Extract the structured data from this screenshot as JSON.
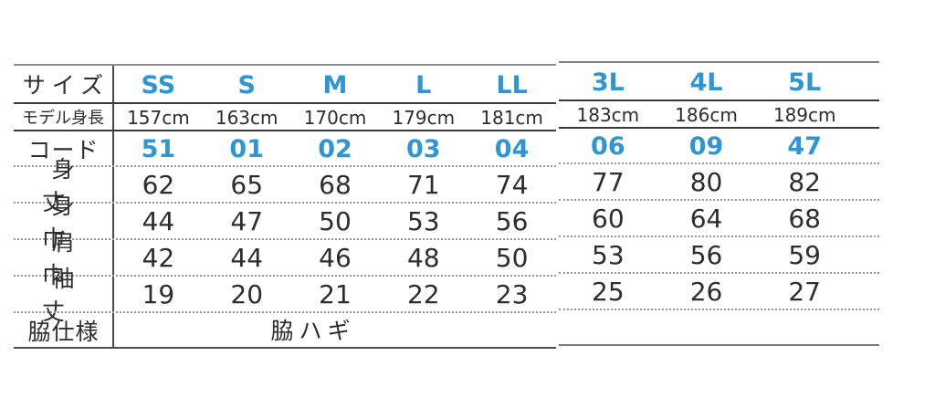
{
  "colors": {
    "accent_blue": "#2e96d5",
    "text_dark": "#2d2d2d",
    "rule_dark": "#383838",
    "rule_gray": "#8e8e8e",
    "rule_dotted": "#949494"
  },
  "chart_data": {
    "type": "table",
    "description": "Apparel size specification chart, two column groups (SS-LL and 3L-5L), all measurements in cm",
    "row_labels": [
      "サイズ",
      "モデル身長",
      "コード",
      "身丈",
      "身巾",
      "肩巾",
      "袖丈",
      "脇仕様"
    ],
    "columns": [
      "SS",
      "S",
      "M",
      "L",
      "LL",
      "3L",
      "4L",
      "5L"
    ],
    "left_section": {
      "rows": [
        [
          "SS",
          "S",
          "M",
          "L",
          "LL"
        ],
        [
          "157cm",
          "163cm",
          "170cm",
          "179cm",
          "181cm"
        ],
        [
          "51",
          "01",
          "02",
          "03",
          "04"
        ],
        [
          "62",
          "65",
          "68",
          "71",
          "74"
        ],
        [
          "44",
          "47",
          "50",
          "53",
          "56"
        ],
        [
          "42",
          "44",
          "46",
          "48",
          "50"
        ],
        [
          "19",
          "20",
          "21",
          "22",
          "23"
        ]
      ],
      "side_spec": "脇ハギ"
    },
    "right_section": {
      "rows": [
        [
          "3L",
          "4L",
          "5L"
        ],
        [
          "183cm",
          "186cm",
          "189cm"
        ],
        [
          "06",
          "09",
          "47"
        ],
        [
          "77",
          "80",
          "82"
        ],
        [
          "60",
          "64",
          "68"
        ],
        [
          "53",
          "56",
          "59"
        ],
        [
          "25",
          "26",
          "27"
        ]
      ],
      "side_spec": ""
    }
  }
}
